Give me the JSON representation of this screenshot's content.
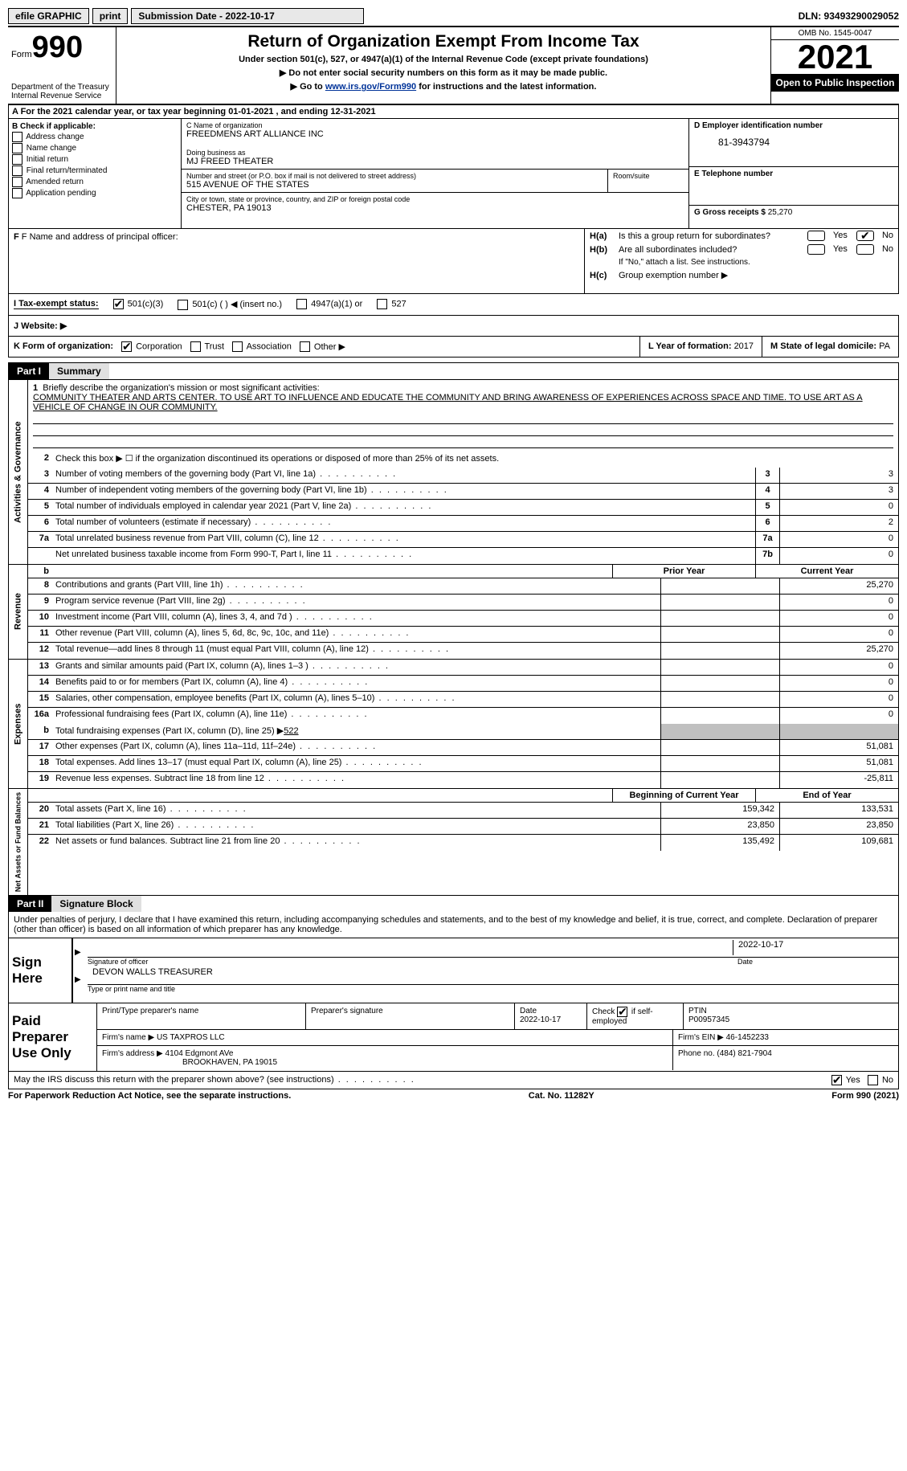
{
  "top": {
    "efile": "efile GRAPHIC",
    "print": "print",
    "subDate": "Submission Date - 2022-10-17",
    "dln": "DLN: 93493290029052"
  },
  "header": {
    "formWord": "Form",
    "formNum": "990",
    "dept": "Department of the Treasury",
    "irs": "Internal Revenue Service",
    "title": "Return of Organization Exempt From Income Tax",
    "subtitle": "Under section 501(c), 527, or 4947(a)(1) of the Internal Revenue Code (except private foundations)",
    "inst1": "▶ Do not enter social security numbers on this form as it may be made public.",
    "inst2_pre": "▶ Go to ",
    "inst2_link": "www.irs.gov/Form990",
    "inst2_post": " for instructions and the latest information.",
    "omb": "OMB No. 1545-0047",
    "year": "2021",
    "open": "Open to Public Inspection"
  },
  "sectionA": {
    "text": "A For the 2021 calendar year, or tax year beginning 01-01-2021   , and ending 12-31-2021"
  },
  "colB": {
    "label": "B Check if applicable:",
    "opt1": "Address change",
    "opt2": "Name change",
    "opt3": "Initial return",
    "opt4": "Final return/terminated",
    "opt5": "Amended return",
    "opt6": "Application pending"
  },
  "colC": {
    "nameLabel": "C Name of organization",
    "name": "FREEDMENS ART ALLIANCE INC",
    "dbaLabel": "Doing business as",
    "dba": "MJ FREED THEATER",
    "addrLabel": "Number and street (or P.O. box if mail is not delivered to street address)",
    "addr": "515 AVENUE OF THE STATES",
    "roomLabel": "Room/suite",
    "cityLabel": "City or town, state or province, country, and ZIP or foreign postal code",
    "city": "CHESTER, PA  19013"
  },
  "colD": {
    "einLabel": "D Employer identification number",
    "ein": "81-3943794",
    "phoneLabel": "E Telephone number",
    "grossLabel": "G Gross receipts $",
    "gross": "25,270"
  },
  "officer": {
    "label": "F  Name and address of principal officer:",
    "ha": "H(a)",
    "haText": "Is this a group return for subordinates?",
    "hb": "H(b)",
    "hbText": "Are all subordinates included?",
    "hbNote": "If \"No,\" attach a list. See instructions.",
    "hc": "H(c)",
    "hcText": "Group exemption number ▶",
    "yes": "Yes",
    "no": "No"
  },
  "taxRow": {
    "label": "Tax-exempt status:",
    "opt1": "501(c)(3)",
    "opt2": "501(c) (  ) ◀ (insert no.)",
    "opt3": "4947(a)(1) or",
    "opt4": "527"
  },
  "jRow": {
    "label": "J   Website: ▶"
  },
  "kRow": {
    "label": "K Form of organization:",
    "corp": "Corporation",
    "trust": "Trust",
    "assoc": "Association",
    "other": "Other ▶",
    "lLabel": "L Year of formation:",
    "lVal": "2017",
    "mLabel": "M State of legal domicile:",
    "mVal": "PA"
  },
  "part1": {
    "label": "Part I",
    "title": "Summary",
    "sideActivities": "Activities & Governance",
    "sideRevenue": "Revenue",
    "sideExpenses": "Expenses",
    "sideNetAssets": "Net Assets or Fund Balances",
    "line1Label": "Briefly describe the organization's mission or most significant activities:",
    "line1Text": "COMMUNITY THEATER AND ARTS CENTER. TO USE ART TO INFLUENCE AND EDUCATE THE COMMUNITY AND BRING AWARENESS OF EXPERIENCES ACROSS SPACE AND TIME. TO USE ART AS A VEHICLE OF CHANGE IN OUR COMMUNITY.",
    "line2": "Check this box ▶ ☐  if the organization discontinued its operations or disposed of more than 25% of its net assets.",
    "rows": [
      {
        "n": "3",
        "d": "Number of voting members of the governing body (Part VI, line 1a)",
        "box": "3",
        "v": "3"
      },
      {
        "n": "4",
        "d": "Number of independent voting members of the governing body (Part VI, line 1b)",
        "box": "4",
        "v": "3"
      },
      {
        "n": "5",
        "d": "Total number of individuals employed in calendar year 2021 (Part V, line 2a)",
        "box": "5",
        "v": "0"
      },
      {
        "n": "6",
        "d": "Total number of volunteers (estimate if necessary)",
        "box": "6",
        "v": "2"
      },
      {
        "n": "7a",
        "d": "Total unrelated business revenue from Part VIII, column (C), line 12",
        "box": "7a",
        "v": "0"
      },
      {
        "n": "",
        "d": "Net unrelated business taxable income from Form 990-T, Part I, line 11",
        "box": "7b",
        "v": "0"
      }
    ],
    "priorYear": "Prior Year",
    "currentYear": "Current Year",
    "revRows": [
      {
        "n": "8",
        "d": "Contributions and grants (Part VIII, line 1h)",
        "p": "",
        "c": "25,270"
      },
      {
        "n": "9",
        "d": "Program service revenue (Part VIII, line 2g)",
        "p": "",
        "c": "0"
      },
      {
        "n": "10",
        "d": "Investment income (Part VIII, column (A), lines 3, 4, and 7d )",
        "p": "",
        "c": "0"
      },
      {
        "n": "11",
        "d": "Other revenue (Part VIII, column (A), lines 5, 6d, 8c, 9c, 10c, and 11e)",
        "p": "",
        "c": "0"
      },
      {
        "n": "12",
        "d": "Total revenue—add lines 8 through 11 (must equal Part VIII, column (A), line 12)",
        "p": "",
        "c": "25,270"
      }
    ],
    "expRows": [
      {
        "n": "13",
        "d": "Grants and similar amounts paid (Part IX, column (A), lines 1–3 )",
        "p": "",
        "c": "0"
      },
      {
        "n": "14",
        "d": "Benefits paid to or for members (Part IX, column (A), line 4)",
        "p": "",
        "c": "0"
      },
      {
        "n": "15",
        "d": "Salaries, other compensation, employee benefits (Part IX, column (A), lines 5–10)",
        "p": "",
        "c": "0"
      },
      {
        "n": "16a",
        "d": "Professional fundraising fees (Part IX, column (A), line 11e)",
        "p": "",
        "c": "0"
      }
    ],
    "line16b_n": "b",
    "line16b": "Total fundraising expenses (Part IX, column (D), line 25) ▶",
    "line16bVal": "522",
    "expRows2": [
      {
        "n": "17",
        "d": "Other expenses (Part IX, column (A), lines 11a–11d, 11f–24e)",
        "p": "",
        "c": "51,081"
      },
      {
        "n": "18",
        "d": "Total expenses. Add lines 13–17 (must equal Part IX, column (A), line 25)",
        "p": "",
        "c": "51,081"
      },
      {
        "n": "19",
        "d": "Revenue less expenses. Subtract line 18 from line 12",
        "p": "",
        "c": "-25,811"
      }
    ],
    "begYear": "Beginning of Current Year",
    "endYear": "End of Year",
    "netRows": [
      {
        "n": "20",
        "d": "Total assets (Part X, line 16)",
        "p": "159,342",
        "c": "133,531"
      },
      {
        "n": "21",
        "d": "Total liabilities (Part X, line 26)",
        "p": "23,850",
        "c": "23,850"
      },
      {
        "n": "22",
        "d": "Net assets or fund balances. Subtract line 21 from line 20",
        "p": "135,492",
        "c": "109,681"
      }
    ]
  },
  "part2": {
    "label": "Part II",
    "title": "Signature Block",
    "text": "Under penalties of perjury, I declare that I have examined this return, including accompanying schedules and statements, and to the best of my knowledge and belief, it is true, correct, and complete. Declaration of preparer (other than officer) is based on all information of which preparer has any knowledge.",
    "signHere": "Sign Here",
    "sigOfficer": "Signature of officer",
    "sigDate": "2022-10-17",
    "sigDateLabel": "Date",
    "sigName": "DEVON WALLS TREASURER",
    "sigNameLabel": "Type or print name and title"
  },
  "preparer": {
    "label": "Paid Preparer Use Only",
    "printName": "Print/Type preparer's name",
    "prepSig": "Preparer's signature",
    "dateLabel": "Date",
    "date": "2022-10-17",
    "checkLabel": "Check",
    "checkIf": "if self-employed",
    "ptinLabel": "PTIN",
    "ptin": "P00957345",
    "firmNameLabel": "Firm's name   ▶",
    "firmName": "US TAXPROS LLC",
    "firmEinLabel": "Firm's EIN ▶",
    "firmEin": "46-1452233",
    "firmAddrLabel": "Firm's address ▶",
    "firmAddr1": "4104 Edgmont AVe",
    "firmAddr2": "BROOKHAVEN, PA  19015",
    "phoneLabel": "Phone no.",
    "phone": "(484) 821-7904"
  },
  "discuss": {
    "text": "May the IRS discuss this return with the preparer shown above? (see instructions)",
    "yes": "Yes",
    "no": "No"
  },
  "footer": {
    "left": "For Paperwork Reduction Act Notice, see the separate instructions.",
    "mid": "Cat. No. 11282Y",
    "right": "Form 990 (2021)"
  }
}
